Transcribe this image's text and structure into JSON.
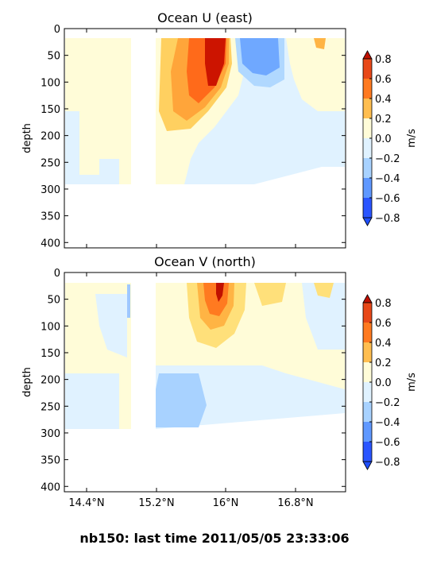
{
  "figure": {
    "suptitle": "nb150: last time 2011/05/05 23:33:06"
  },
  "chart_data": [
    {
      "type": "heatmap",
      "title": "Ocean U (east)",
      "xlabel": "",
      "ylabel": "depth",
      "ylim": [
        410,
        0
      ],
      "y_ticks": [
        "0",
        "50",
        "100",
        "150",
        "200",
        "250",
        "300",
        "350",
        "400"
      ],
      "x_ticks": [],
      "colorbar": {
        "label": "m/s",
        "ticks": [
          "0.8",
          "0.6",
          "0.4",
          "0.2",
          "0.0",
          "−0.2",
          "−0.4",
          "−0.6",
          "−0.8"
        ]
      }
    },
    {
      "type": "heatmap",
      "title": "Ocean V (north)",
      "xlabel": "",
      "ylabel": "depth",
      "ylim": [
        410,
        0
      ],
      "y_ticks": [
        "0",
        "50",
        "100",
        "150",
        "200",
        "250",
        "300",
        "350",
        "400"
      ],
      "x_ticks": [
        "14.4°N",
        "15.2°N",
        "16°N",
        "16.8°N"
      ],
      "colorbar": {
        "label": "m/s",
        "ticks": [
          "0.8",
          "0.6",
          "0.4",
          "0.2",
          "0.0",
          "−0.2",
          "−0.4",
          "−0.6",
          "−0.8"
        ]
      }
    }
  ],
  "colors": {
    "levels": [
      "#1f4fff",
      "#3f7dff",
      "#7fb1ff",
      "#b0d8ff",
      "#e0f2ff",
      "#fffcd8",
      "#ffe07a",
      "#ffb444",
      "#ff7a20",
      "#e33a10",
      "#c01000"
    ],
    "strong_neg": "#1f4fff",
    "strong_pos": "#c01000"
  }
}
